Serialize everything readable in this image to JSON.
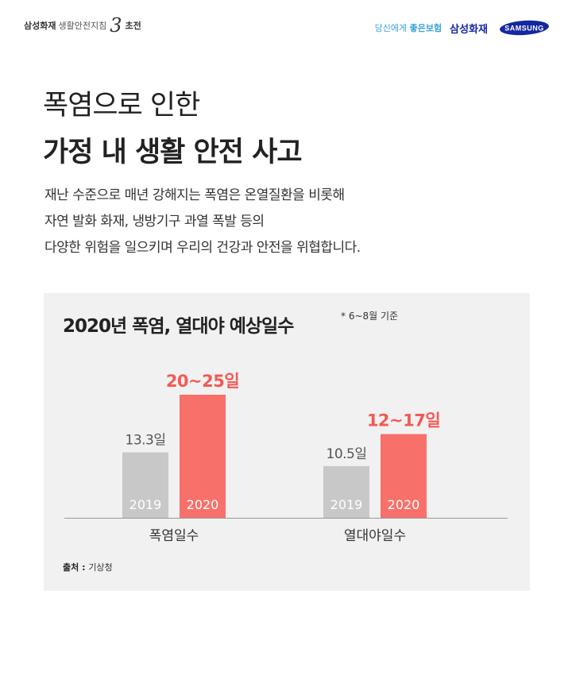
{
  "header": {
    "brand_left": {
      "company": "삼성화재",
      "campaign": "생활안전지침",
      "logo_numeral": "3",
      "suffix": "초전"
    },
    "tagline_prefix": "당신에게",
    "tagline_bold": "좋은보험",
    "company_name": "삼성화재",
    "logo_text": "SAMSUNG"
  },
  "title": {
    "line1": "폭염으로 인한",
    "line2": "가정 내 생활 안전 사고"
  },
  "description": [
    "재난 수준으로 매년 강해지는 폭염은 온열질환을 비롯해",
    "자연 발화 화재, 냉방기구 과열 폭발 등의",
    "다양한 위험을 일으키며 우리의 건강과 안전을 위협합니다."
  ],
  "chart_data": {
    "type": "bar",
    "title": "2020년 폭염, 열대야 예상일수",
    "note": "* 6~8월 기준",
    "categories": [
      "폭염일수",
      "열대야일수"
    ],
    "series": [
      {
        "name": "2019",
        "values": [
          13.3,
          10.5
        ],
        "labels": [
          "13.3일",
          "10.5일"
        ],
        "color": "#c8c8c8"
      },
      {
        "name": "2020",
        "values": [
          25,
          17
        ],
        "labels": [
          "20~25일",
          "12~17일"
        ],
        "color": "#f8706a"
      }
    ],
    "ranges_2020": [
      [
        20,
        25
      ],
      [
        12,
        17
      ]
    ],
    "ylim": [
      0,
      30
    ],
    "label_color_2020": "#f25a55",
    "label_color_2019": "#555555",
    "source_label": "출처 :",
    "source_text": "기상청"
  }
}
